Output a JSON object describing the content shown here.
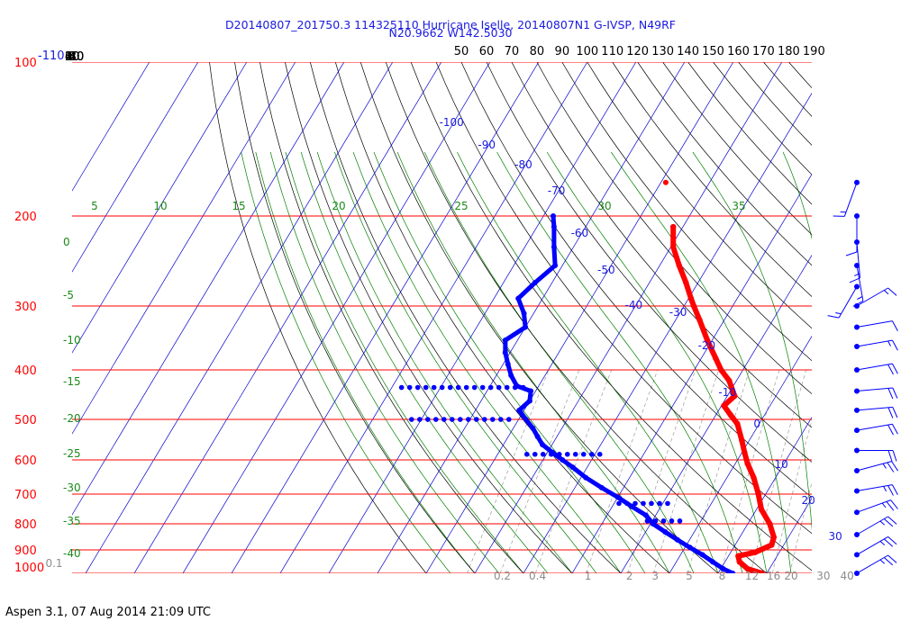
{
  "header": {
    "title_line1": "D20140807_201750.3 114325110 Hurricane Iselle, 20140807N1 G-IVSP, N49RF",
    "title_line2": "N20.9662 W142.5030"
  },
  "footer": "Aspen 3.1, 07 Aug 2014  21:09 UTC",
  "colors": {
    "isobar": "#ff0000",
    "isotherm": "#0000cc",
    "dry_adiabat": "#000000",
    "moist_adiabat": "#008000",
    "mixing_ratio": "#999999",
    "temperature": "#ff0000",
    "dewpoint": "#0000ff",
    "wind": "#0000ff",
    "label_blue": "#1a1adf",
    "label_green": "#1a8a1a",
    "label_gray": "#8c8c8c"
  },
  "chart_data": {
    "type": "skew-t",
    "pressure_levels_hPa": [
      "100",
      "200",
      "300",
      "400",
      "500",
      "600",
      "700",
      "800",
      "900",
      "1000"
    ],
    "extra_pressure_label": "-110",
    "top_axis_labels": [
      "50",
      "60",
      "70",
      "80",
      "90",
      "100",
      "110",
      "120",
      "130",
      "140",
      "150",
      "160",
      "170",
      "180",
      "190"
    ],
    "dry_adiabat_labels": [
      "40",
      "30",
      "20",
      "10",
      "0",
      "-10",
      "-20",
      "-30",
      "-40"
    ],
    "isotherm_labels": [
      "-100",
      "-90",
      "-80",
      "-70",
      "-60",
      "-50",
      "-40",
      "-30",
      "-20",
      "-10",
      "0",
      "10",
      "20",
      "30"
    ],
    "moist_adiabat_labels_top": [
      "5",
      "10",
      "15",
      "20",
      "25",
      "30",
      "35"
    ],
    "moist_adiabat_labels_left": [
      "0",
      "-5",
      "-10",
      "-15",
      "-20",
      "-25",
      "-30",
      "-35",
      "-40"
    ],
    "mixing_ratio_labels": [
      "0.1",
      "0.2",
      "0.4",
      "1",
      "2",
      "3",
      "5",
      "8",
      "12",
      "16",
      "20",
      "30",
      "40"
    ],
    "temperature_profile": [
      {
        "p": 210,
        "t": -42.0
      },
      {
        "p": 230,
        "t": -39.5
      },
      {
        "p": 250,
        "t": -36.0
      },
      {
        "p": 270,
        "t": -32.5
      },
      {
        "p": 290,
        "t": -29.5
      },
      {
        "p": 300,
        "t": -28.0
      },
      {
        "p": 320,
        "t": -25.0
      },
      {
        "p": 350,
        "t": -21.0
      },
      {
        "p": 380,
        "t": -17.0
      },
      {
        "p": 400,
        "t": -14.5
      },
      {
        "p": 420,
        "t": -11.5
      },
      {
        "p": 450,
        "t": -8.5
      },
      {
        "p": 470,
        "t": -9.5
      },
      {
        "p": 490,
        "t": -7.0
      },
      {
        "p": 510,
        "t": -4.5
      },
      {
        "p": 550,
        "t": -1.5
      },
      {
        "p": 580,
        "t": 0.5
      },
      {
        "p": 610,
        "t": 2.5
      },
      {
        "p": 650,
        "t": 5.5
      },
      {
        "p": 700,
        "t": 8.5
      },
      {
        "p": 750,
        "t": 11.0
      },
      {
        "p": 800,
        "t": 14.5
      },
      {
        "p": 850,
        "t": 17.0
      },
      {
        "p": 880,
        "t": 17.5
      },
      {
        "p": 910,
        "t": 15.0
      },
      {
        "p": 925,
        "t": 12.0
      },
      {
        "p": 950,
        "t": 13.0
      },
      {
        "p": 980,
        "t": 15.5
      },
      {
        "p": 1000,
        "t": 19.0
      }
    ],
    "temperature_isolated_point": {
      "p": 172,
      "t": -49.0
    },
    "dewpoint_profile": [
      {
        "p": 200,
        "t": -68.0
      },
      {
        "p": 210,
        "t": -66.5
      },
      {
        "p": 230,
        "t": -64.0
      },
      {
        "p": 250,
        "t": -61.5
      },
      {
        "p": 270,
        "t": -63.5
      },
      {
        "p": 290,
        "t": -65.0
      },
      {
        "p": 310,
        "t": -62.0
      },
      {
        "p": 330,
        "t": -60.0
      },
      {
        "p": 350,
        "t": -62.5
      },
      {
        "p": 370,
        "t": -61.0
      },
      {
        "p": 390,
        "t": -59.0
      },
      {
        "p": 410,
        "t": -57.0
      },
      {
        "p": 430,
        "t": -54.5
      },
      {
        "p": 440,
        "t": -51.0
      },
      {
        "p": 460,
        "t": -50.0
      },
      {
        "p": 480,
        "t": -51.0
      },
      {
        "p": 500,
        "t": -48.5
      },
      {
        "p": 520,
        "t": -46.0
      },
      {
        "p": 540,
        "t": -44.0
      },
      {
        "p": 560,
        "t": -42.0
      },
      {
        "p": 580,
        "t": -39.0
      },
      {
        "p": 600,
        "t": -36.0
      },
      {
        "p": 620,
        "t": -33.0
      },
      {
        "p": 650,
        "t": -29.0
      },
      {
        "p": 680,
        "t": -24.5
      },
      {
        "p": 710,
        "t": -20.0
      },
      {
        "p": 740,
        "t": -16.0
      },
      {
        "p": 770,
        "t": -12.0
      },
      {
        "p": 800,
        "t": -9.5
      },
      {
        "p": 830,
        "t": -6.0
      },
      {
        "p": 860,
        "t": -2.5
      },
      {
        "p": 890,
        "t": 1.0
      },
      {
        "p": 920,
        "t": 4.5
      },
      {
        "p": 950,
        "t": 7.5
      },
      {
        "p": 980,
        "t": 10.5
      },
      {
        "p": 1000,
        "t": 13.0
      }
    ],
    "dewpoint_dotted_segments": [
      {
        "p": 433,
        "t_start": -78.0,
        "t_end": -52.0
      },
      {
        "p": 500,
        "t_start": -72.0,
        "t_end": -52.0
      },
      {
        "p": 585,
        "t_start": -44.0,
        "t_end": -28.0
      },
      {
        "p": 730,
        "t_start": -19.0,
        "t_end": -9.0
      },
      {
        "p": 790,
        "t_start": -11.0,
        "t_end": -4.0
      }
    ],
    "wind_barbs": [
      {
        "p": 172,
        "dir": 200,
        "kt": 15
      },
      {
        "p": 200,
        "dir": 180,
        "kt": 10
      },
      {
        "p": 225,
        "dir": 175,
        "kt": 15
      },
      {
        "p": 250,
        "dir": 170,
        "kt": 15
      },
      {
        "p": 275,
        "dir": 210,
        "kt": 15
      },
      {
        "p": 300,
        "dir": 60,
        "kt": 15
      },
      {
        "p": 330,
        "dir": 80,
        "kt": 10
      },
      {
        "p": 360,
        "dir": 80,
        "kt": 15
      },
      {
        "p": 400,
        "dir": 80,
        "kt": 20
      },
      {
        "p": 440,
        "dir": 85,
        "kt": 20
      },
      {
        "p": 480,
        "dir": 85,
        "kt": 20
      },
      {
        "p": 525,
        "dir": 80,
        "kt": 20
      },
      {
        "p": 575,
        "dir": 90,
        "kt": 20
      },
      {
        "p": 630,
        "dir": 75,
        "kt": 25
      },
      {
        "p": 690,
        "dir": 80,
        "kt": 25
      },
      {
        "p": 760,
        "dir": 70,
        "kt": 25
      },
      {
        "p": 840,
        "dir": 60,
        "kt": 25
      },
      {
        "p": 920,
        "dir": 60,
        "kt": 25
      },
      {
        "p": 1000,
        "dir": 60,
        "kt": 25
      }
    ]
  }
}
